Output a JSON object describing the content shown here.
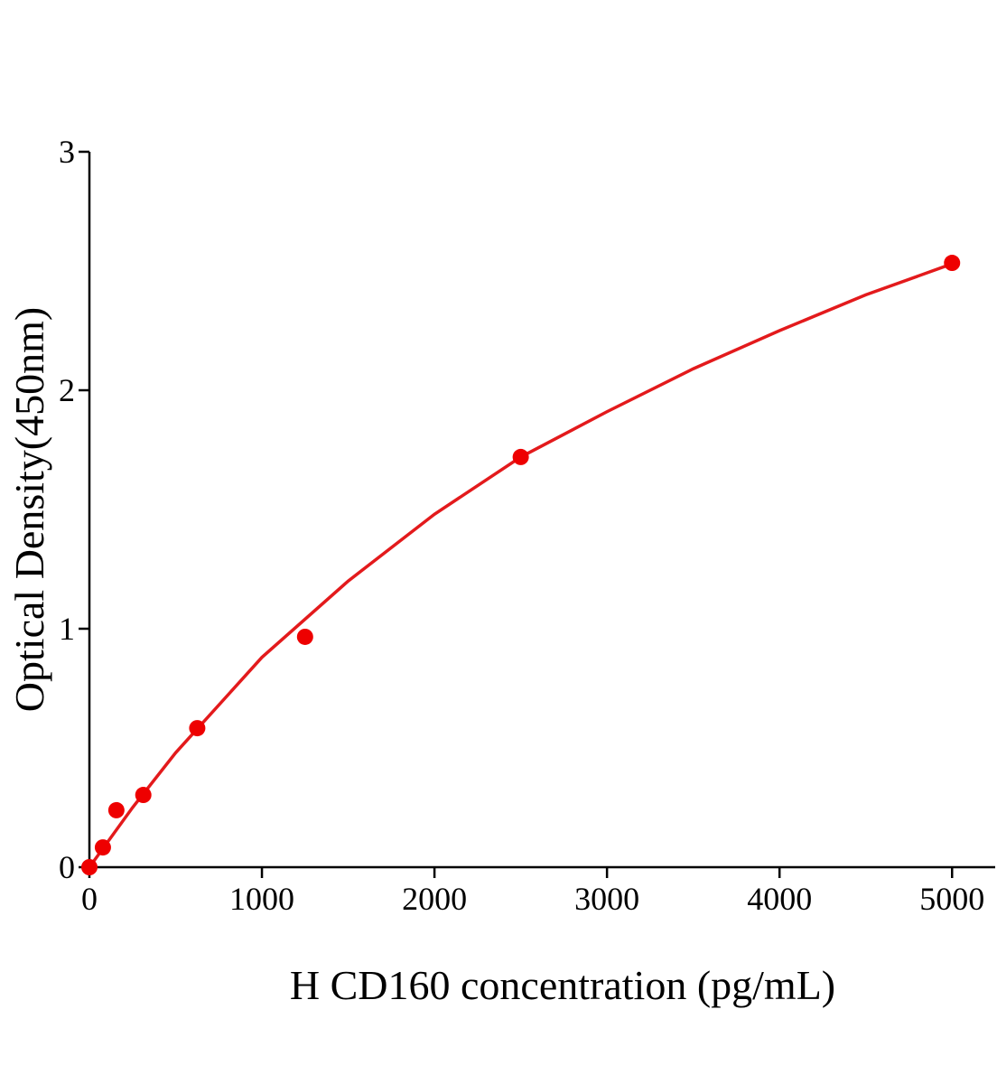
{
  "chart_data": {
    "type": "scatter",
    "xlabel": "H CD160 concentration (pg/mL)",
    "ylabel": "Optical Density(450nm)",
    "series": [
      {
        "color": "#ee0000",
        "mode": "markers",
        "x": [
          0,
          78.125,
          156.25,
          312.5,
          625,
          1250,
          2500,
          5000
        ],
        "values": [
          0,
          0.083,
          0.239,
          0.303,
          0.583,
          0.966,
          1.72,
          2.534
        ]
      },
      {
        "color": "#e31a1c",
        "mode": "line",
        "x": [
          0,
          250,
          500,
          1000,
          1500,
          2000,
          2500,
          3000,
          3500,
          4000,
          4500,
          5000
        ],
        "values": [
          0,
          0.25,
          0.48,
          0.88,
          1.2,
          1.48,
          1.72,
          1.91,
          2.09,
          2.25,
          2.4,
          2.53
        ]
      }
    ],
    "xlim": [
      0,
      5250
    ],
    "xticks": [
      0,
      1000,
      2000,
      3000,
      4000,
      5000
    ],
    "ylim": [
      0,
      3
    ],
    "yticks": [
      0,
      1,
      2,
      3
    ]
  }
}
